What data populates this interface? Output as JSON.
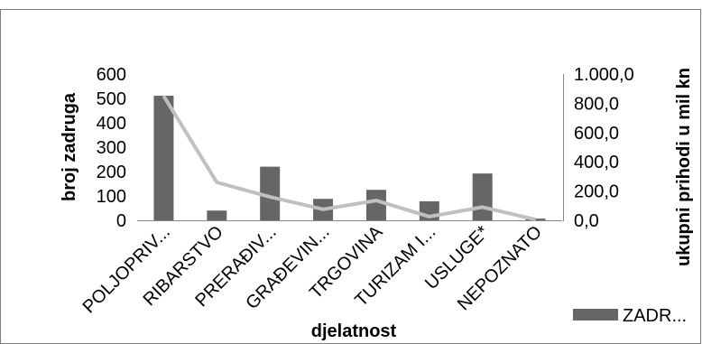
{
  "chart_data": {
    "type": "bar",
    "categories": [
      "POLJOPRIV...",
      "RIBARSTVO",
      "PRERAĐIV...",
      "GRAĐEVIN...",
      "TRGOVINA",
      "TURIZAM I...",
      "USLUGE*",
      "NEPOZNATO"
    ],
    "series": [
      {
        "name": "ZADR...",
        "type": "bar",
        "axis": "left",
        "color": "#666666",
        "values": [
          511,
          40,
          220,
          88,
          125,
          78,
          192,
          7
        ]
      },
      {
        "type": "line",
        "axis": "right",
        "color": "#c0c0c0",
        "values": [
          850,
          260,
          160,
          75,
          135,
          25,
          90,
          5
        ]
      }
    ],
    "xlabel": "djelatnost",
    "ylabel": "broj zadruga",
    "y2label": "ukupni prihodi u mil kn",
    "ylim": [
      0,
      600
    ],
    "y2lim": [
      0,
      1000
    ],
    "yticks": [
      "0",
      "100",
      "200",
      "300",
      "400",
      "500",
      "600"
    ],
    "y2ticks": [
      "0,0",
      "200,0",
      "400,0",
      "600,0",
      "800,0",
      "1.000,0"
    ],
    "grid": false,
    "legend_position": "bottom-right"
  }
}
